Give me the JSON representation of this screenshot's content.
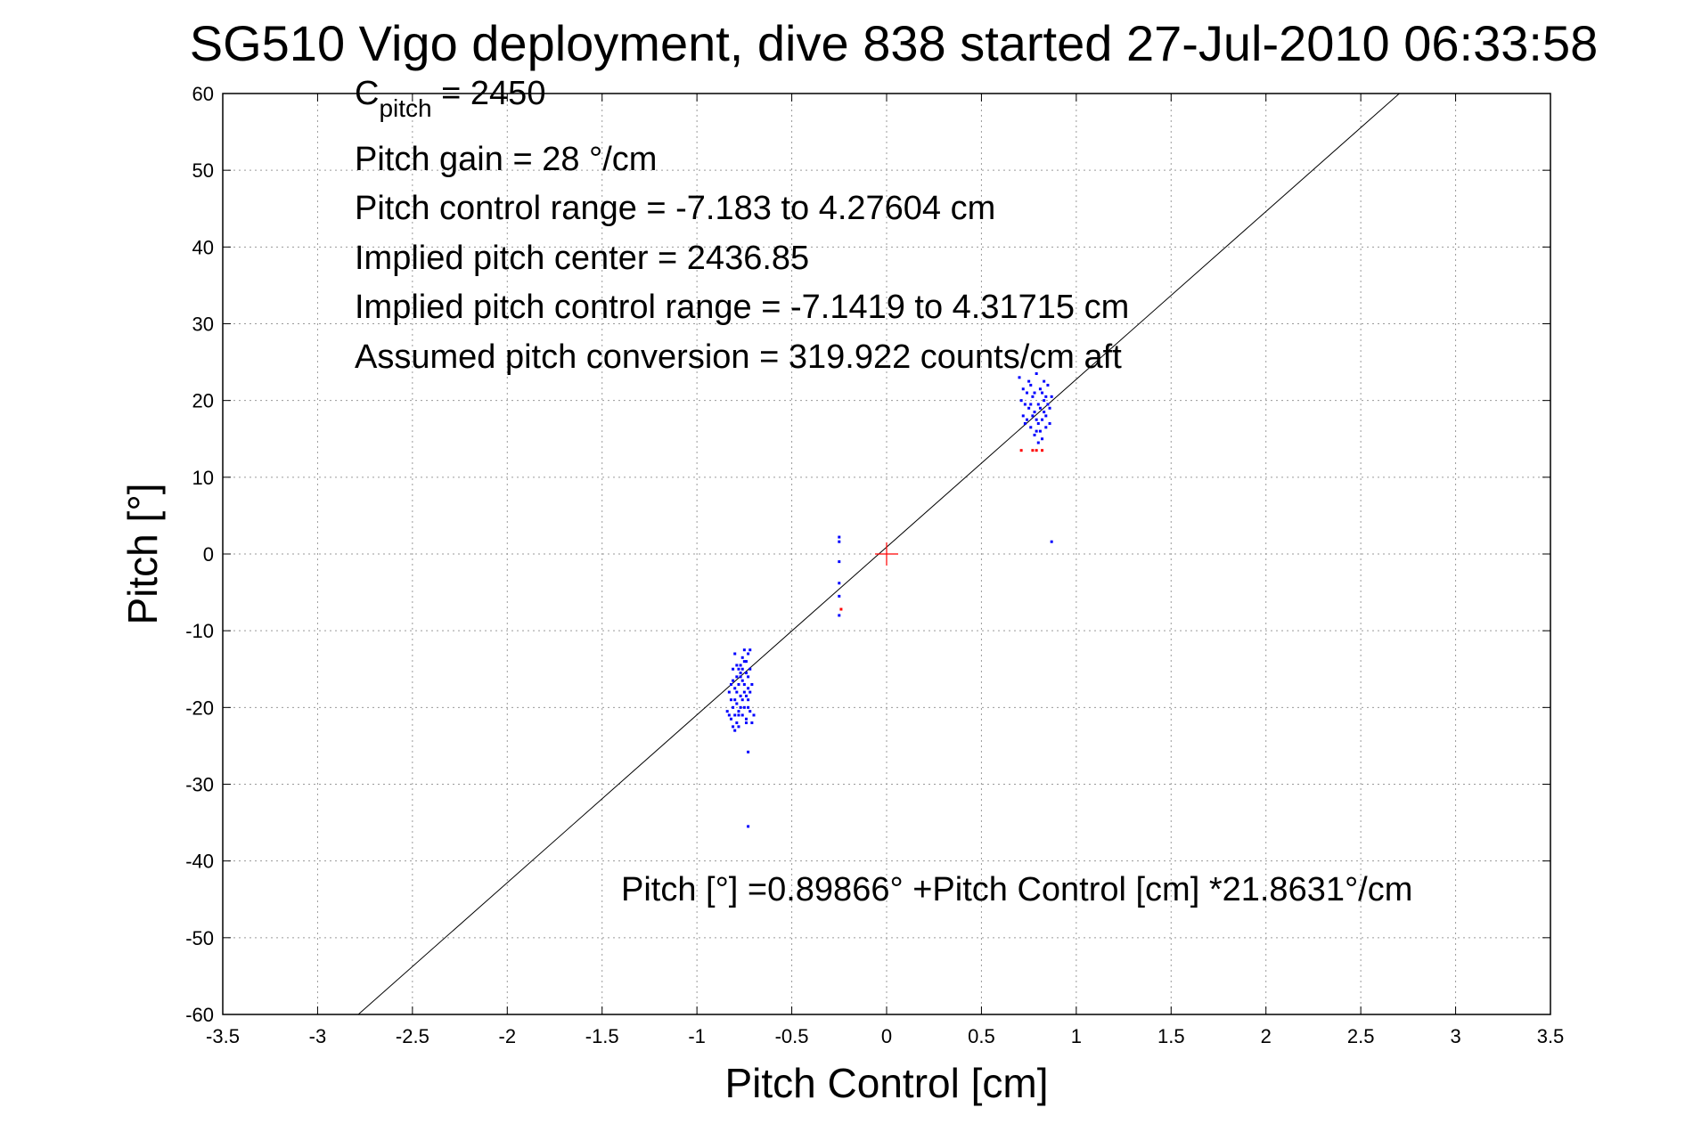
{
  "chart_data": {
    "type": "scatter",
    "title": "SG510 Vigo deployment, dive 838 started 27-Jul-2010 06:33:58",
    "xlabel": "Pitch Control [cm]",
    "ylabel": "Pitch [°]",
    "xlim": [
      -3.5,
      3.5
    ],
    "ylim": [
      -60,
      60
    ],
    "xticks": [
      -3.5,
      -3,
      -2.5,
      -2,
      -1.5,
      -1,
      -0.5,
      0,
      0.5,
      1,
      1.5,
      2,
      2.5,
      3,
      3.5
    ],
    "yticks": [
      -60,
      -50,
      -40,
      -30,
      -20,
      -10,
      0,
      10,
      20,
      30,
      40,
      50,
      60
    ],
    "xtick_labels": [
      "-3.5",
      "-3",
      "-2.5",
      "-2",
      "-1.5",
      "-1",
      "-0.5",
      "0",
      "0.5",
      "1",
      "1.5",
      "2",
      "2.5",
      "3",
      "3.5"
    ],
    "ytick_labels": [
      "-60",
      "-50",
      "-40",
      "-30",
      "-20",
      "-10",
      "0",
      "10",
      "20",
      "30",
      "40",
      "50",
      "60"
    ],
    "grid": true,
    "colors": {
      "points": "#0000ff",
      "flagged": "#ff0000",
      "fit_line": "#000000",
      "center_marker": "#ff0000"
    },
    "annotations": {
      "c_pitch_symbol": "C",
      "c_pitch_subscript": "pitch",
      "c_pitch_value": " = 2450",
      "pitch_gain": "Pitch gain = 28 °/cm",
      "control_range": "Pitch control range = -7.183 to 4.27604 cm",
      "implied_center": "Implied pitch center = 2436.85",
      "implied_range": "Implied pitch control range = -7.1419 to 4.31715 cm",
      "assumed_conversion": "Assumed pitch conversion = 319.922 counts/cm aft",
      "fit_equation": "Pitch [°] =0.89866° +Pitch Control [cm] *21.8631°/cm"
    },
    "fit": {
      "intercept": 0.89866,
      "slope": 21.8631
    },
    "center_marker": [
      0,
      0
    ],
    "series": [
      {
        "marker": "dot",
        "color": "#0000ff",
        "points": [
          [
            -0.8,
            -13
          ],
          [
            -0.79,
            -14.5
          ],
          [
            -0.78,
            -15
          ],
          [
            -0.77,
            -16
          ],
          [
            -0.76,
            -13.5
          ],
          [
            -0.75,
            -12.5
          ],
          [
            -0.74,
            -14
          ],
          [
            -0.73,
            -13
          ],
          [
            -0.72,
            -12.5
          ],
          [
            -0.81,
            -16.5
          ],
          [
            -0.8,
            -17.5
          ],
          [
            -0.79,
            -18
          ],
          [
            -0.78,
            -17
          ],
          [
            -0.77,
            -15.5
          ],
          [
            -0.76,
            -16.5
          ],
          [
            -0.75,
            -17
          ],
          [
            -0.74,
            -18.5
          ],
          [
            -0.73,
            -16
          ],
          [
            -0.72,
            -15
          ],
          [
            -0.82,
            -19
          ],
          [
            -0.81,
            -20
          ],
          [
            -0.8,
            -21
          ],
          [
            -0.79,
            -19.5
          ],
          [
            -0.78,
            -20.5
          ],
          [
            -0.77,
            -18.5
          ],
          [
            -0.76,
            -19
          ],
          [
            -0.75,
            -20
          ],
          [
            -0.74,
            -21.5
          ],
          [
            -0.73,
            -19
          ],
          [
            -0.72,
            -20.5
          ],
          [
            -0.71,
            -22
          ],
          [
            -0.83,
            -18
          ],
          [
            -0.82,
            -21.5
          ],
          [
            -0.81,
            -22.5
          ],
          [
            -0.8,
            -23
          ],
          [
            -0.79,
            -22
          ],
          [
            -0.78,
            -21
          ],
          [
            -0.77,
            -14.5
          ],
          [
            -0.76,
            -15
          ],
          [
            -0.75,
            -14
          ],
          [
            -0.74,
            -15.5
          ],
          [
            -0.73,
            -17.5
          ],
          [
            -0.72,
            -18
          ],
          [
            -0.71,
            -17
          ],
          [
            -0.84,
            -20.5
          ],
          [
            -0.83,
            -21
          ],
          [
            -0.82,
            -17
          ],
          [
            -0.81,
            -15
          ],
          [
            -0.8,
            -19
          ],
          [
            -0.78,
            -22.5
          ],
          [
            -0.76,
            -21
          ],
          [
            -0.74,
            -22
          ],
          [
            -0.7,
            -21
          ],
          [
            -0.79,
            -16
          ],
          [
            -0.77,
            -20
          ],
          [
            -0.75,
            -18
          ],
          [
            -0.73,
            -20
          ],
          [
            -0.73,
            -25.8
          ],
          [
            -0.73,
            -35.5
          ],
          [
            -0.25,
            2.2
          ],
          [
            -0.25,
            1.6
          ],
          [
            -0.25,
            -1
          ],
          [
            -0.25,
            -3.8
          ],
          [
            -0.25,
            -5.5
          ],
          [
            -0.25,
            -8
          ],
          [
            0.7,
            23
          ],
          [
            0.71,
            20
          ],
          [
            0.72,
            18
          ],
          [
            0.73,
            17
          ],
          [
            0.74,
            21
          ],
          [
            0.75,
            19
          ],
          [
            0.76,
            22
          ],
          [
            0.77,
            20.5
          ],
          [
            0.78,
            18.5
          ],
          [
            0.79,
            16
          ],
          [
            0.8,
            19.5
          ],
          [
            0.81,
            21.5
          ],
          [
            0.82,
            17.5
          ],
          [
            0.83,
            20
          ],
          [
            0.84,
            18
          ],
          [
            0.85,
            22
          ],
          [
            0.86,
            19
          ],
          [
            0.87,
            20.5
          ],
          [
            0.72,
            21.5
          ],
          [
            0.74,
            17.5
          ],
          [
            0.76,
            16.5
          ],
          [
            0.78,
            15.5
          ],
          [
            0.8,
            14.5
          ],
          [
            0.82,
            15
          ],
          [
            0.84,
            16.5
          ],
          [
            0.86,
            17
          ],
          [
            0.75,
            22.5
          ],
          [
            0.79,
            23.5
          ],
          [
            0.83,
            22.5
          ],
          [
            0.81,
            19
          ],
          [
            0.77,
            18
          ],
          [
            0.73,
            19.5
          ],
          [
            0.85,
            19.5
          ],
          [
            0.8,
            17
          ],
          [
            0.82,
            21
          ],
          [
            0.78,
            21
          ],
          [
            0.76,
            19.5
          ],
          [
            0.84,
            20.5
          ],
          [
            0.79,
            17.5
          ],
          [
            0.81,
            16
          ],
          [
            0.83,
            18.5
          ],
          [
            0.87,
            1.6
          ]
        ]
      },
      {
        "marker": "dot",
        "color": "#ff0000",
        "points": [
          [
            0.71,
            13.5
          ],
          [
            0.77,
            13.5
          ],
          [
            0.79,
            13.5
          ],
          [
            0.82,
            13.5
          ],
          [
            -0.24,
            -7.2
          ]
        ]
      }
    ]
  }
}
